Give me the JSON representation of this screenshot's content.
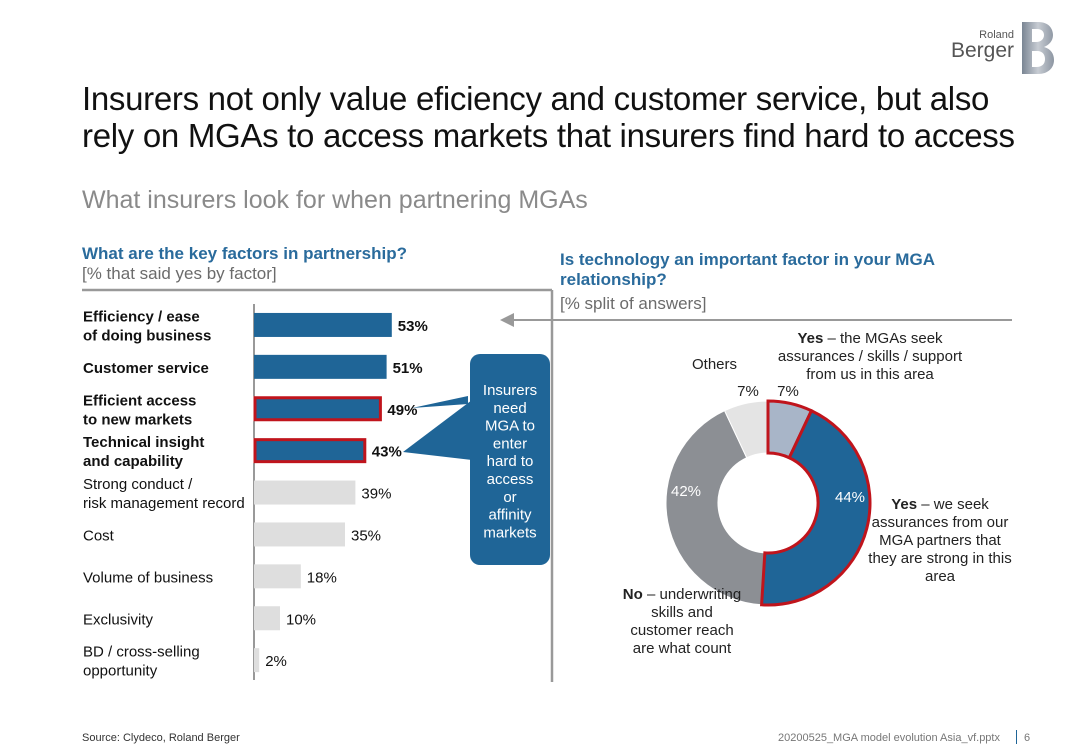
{
  "header": {
    "title": "Insurers not only value eficiency and customer service, but also rely on MGAs to access markets that insurers find hard to access",
    "subtitle": "What insurers look for when partnering MGAs"
  },
  "logo": {
    "line1": "Roland",
    "line2": "Berger",
    "mark": "B"
  },
  "left_panel": {
    "question": "What are the key factors in partnership?",
    "unit": "[% that said yes by factor]"
  },
  "right_panel": {
    "question": "Is technology an important factor in your MGA relationship?",
    "unit": "[% split of answers]"
  },
  "callout": {
    "text": [
      "Insurers",
      "need",
      "MGA to",
      "enter",
      "hard to",
      "access",
      "or",
      "affinity",
      "markets"
    ]
  },
  "chart_data": [
    {
      "type": "bar",
      "orientation": "horizontal",
      "categories": [
        [
          "Efficiency / ease",
          "of doing business"
        ],
        [
          "Customer service"
        ],
        [
          "Efficient access",
          "to new markets"
        ],
        [
          "Technical insight",
          "and capability"
        ],
        [
          "Strong conduct /",
          "risk management record"
        ],
        [
          "Cost"
        ],
        [
          "Volume of business"
        ],
        [
          "Exclusivity"
        ],
        [
          "BD / cross-selling",
          "opportunity"
        ]
      ],
      "values": [
        53,
        51,
        49,
        43,
        39,
        35,
        18,
        10,
        2
      ],
      "value_labels": [
        "53%",
        "51%",
        "49%",
        "43%",
        "39%",
        "35%",
        "18%",
        "10%",
        "2%"
      ],
      "bold": [
        true,
        true,
        true,
        true,
        false,
        false,
        false,
        false,
        false
      ],
      "highlighted": [
        false,
        false,
        true,
        true,
        false,
        false,
        false,
        false,
        false
      ],
      "xlim": [
        0,
        100
      ],
      "colors": {
        "primary": "#1f6597",
        "secondary": "#dedede",
        "highlight_border": "#c0141c"
      }
    },
    {
      "type": "pie",
      "donut": true,
      "slices": [
        {
          "value": 7,
          "label": "7%",
          "color": "#a8b5c8",
          "highlighted": true
        },
        {
          "value": 44,
          "label": "44%",
          "color": "#1f6597",
          "highlighted": true
        },
        {
          "value": 42,
          "label": "42%",
          "color": "#8c8f94",
          "highlighted": false
        },
        {
          "value": 7,
          "label": "7%",
          "color": "#e4e4e4",
          "highlighted": false
        }
      ],
      "annotations": {
        "yes_skills": {
          "bold": "Yes",
          "lines": [
            " – the MGAs seek",
            "assurances / skills / support",
            "from us in this area"
          ]
        },
        "yes_strong": {
          "bold": "Yes",
          "lines": [
            " – we seek",
            "assurances from our",
            "MGA partners that",
            "they are strong in this",
            "area"
          ]
        },
        "no": {
          "bold": "No",
          "lines": [
            " – underwriting",
            "skills and",
            "customer reach",
            "are what count"
          ]
        },
        "others": "Others"
      }
    }
  ],
  "footer": {
    "source": "Source: Clydeco, Roland Berger",
    "file": "20200525_MGA model evolution Asia_vf.pptx",
    "page": "6"
  }
}
